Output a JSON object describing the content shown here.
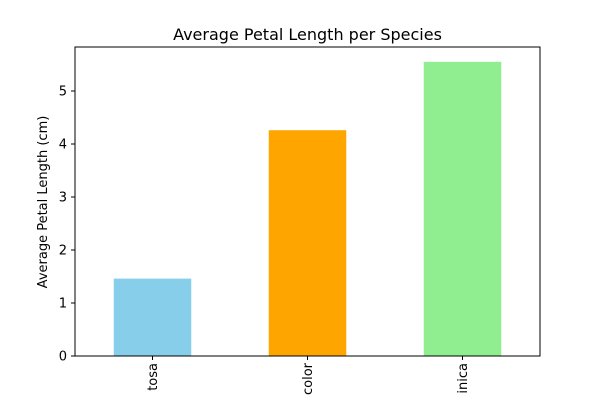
{
  "chart_data": {
    "type": "bar",
    "title": "Average Petal Length per Species",
    "xlabel": "",
    "ylabel": "Average Petal Length (cm)",
    "categories": [
      "setosa",
      "versicolor",
      "virginica"
    ],
    "visible_tick_labels": [
      "tosa",
      "color",
      "inica"
    ],
    "values": [
      1.46,
      4.26,
      5.55
    ],
    "colors": [
      "#87ceeb",
      "#ffa500",
      "#90ee90"
    ],
    "yticks": [
      "0",
      "1",
      "2",
      "3",
      "4",
      "5"
    ],
    "ylim": [
      0,
      5.83
    ],
    "grid": false,
    "legend": "none"
  }
}
